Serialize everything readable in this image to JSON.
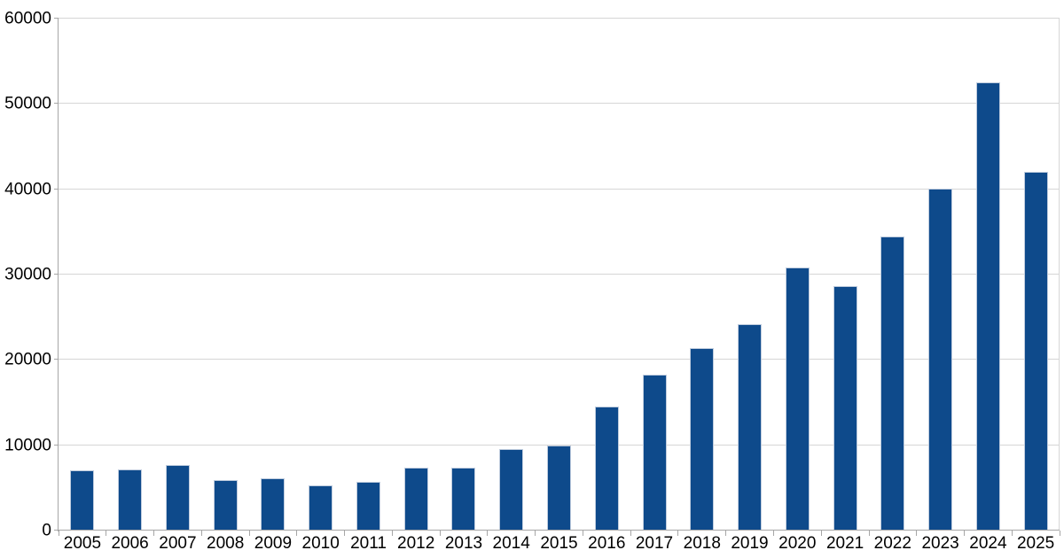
{
  "chart_data": {
    "type": "bar",
    "title": "",
    "xlabel": "",
    "ylabel": "",
    "categories": [
      "2005",
      "2006",
      "2007",
      "2008",
      "2009",
      "2010",
      "2011",
      "2012",
      "2013",
      "2014",
      "2015",
      "2016",
      "2017",
      "2018",
      "2019",
      "2020",
      "2021",
      "2022",
      "2023",
      "2024",
      "2025"
    ],
    "values": [
      7100,
      7200,
      7700,
      5900,
      6100,
      5300,
      5700,
      7400,
      7400,
      9600,
      10000,
      14500,
      18300,
      21400,
      24200,
      30800,
      28700,
      34500,
      40100,
      52500,
      42000
    ],
    "ylim": [
      0,
      60000
    ],
    "y_ticks": [
      0,
      10000,
      20000,
      30000,
      40000,
      50000,
      60000
    ],
    "y_tick_labels": [
      "0",
      "10000",
      "20000",
      "30000",
      "40000",
      "50000",
      "60000"
    ],
    "grid": true,
    "legend": "none",
    "colors": {
      "bar_fill": "#0e4a8b",
      "bar_edge": "#bfccde",
      "gridline": "#d6d6d6",
      "axis": "#a6a6a6",
      "text": "#000000",
      "background": "#ffffff"
    }
  }
}
